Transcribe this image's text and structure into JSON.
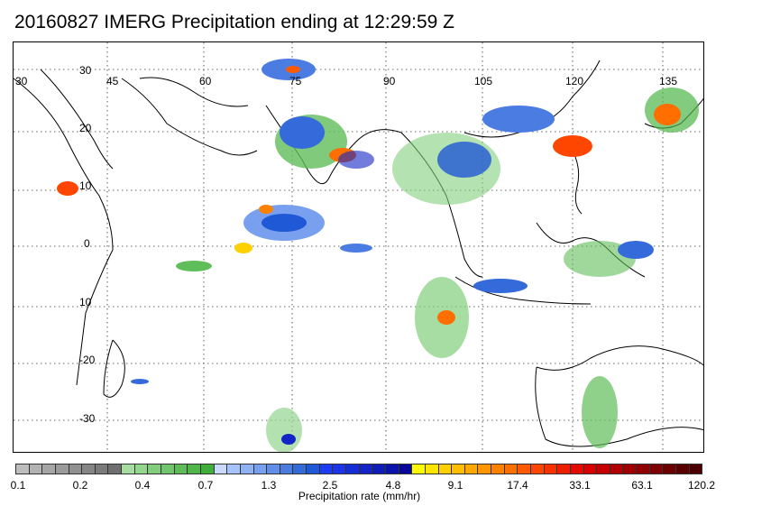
{
  "title": "20160827 IMERG Precipitation ending at 12:29:59 Z",
  "map": {
    "lon_labels": [
      "30",
      "45",
      "60",
      "75",
      "90",
      "105",
      "120",
      "135"
    ],
    "lat_labels": [
      "30",
      "20",
      "10",
      "0",
      "10",
      "-20",
      "-30"
    ]
  },
  "colorbar": {
    "colors": [
      "#bdbdbd",
      "#b2b2b2",
      "#a6a6a6",
      "#9b9b9b",
      "#909090",
      "#858585",
      "#7a7a7a",
      "#6f6f6f",
      "#a5dea0",
      "#93d68e",
      "#82ce7c",
      "#71c66b",
      "#60be5a",
      "#4fb649",
      "#3faf3a",
      "#c9d9ff",
      "#a6c4ff",
      "#8fb2f5",
      "#78a0ee",
      "#618ee8",
      "#4a7ce1",
      "#356adb",
      "#2059d6",
      "#1f3cf5",
      "#1a34e6",
      "#162cd6",
      "#1224c7",
      "#0e1cb8",
      "#0a14a8",
      "#06079a",
      "#fffb00",
      "#ffe400",
      "#ffd000",
      "#ffbd00",
      "#ffa900",
      "#ff9500",
      "#ff8100",
      "#ff6e00",
      "#ff5a00",
      "#ff4600",
      "#f73200",
      "#ee1e00",
      "#e50a00",
      "#d60000",
      "#c40000",
      "#b30000",
      "#a10000",
      "#900000",
      "#7e0000",
      "#6d0000",
      "#5b0000",
      "#4a0000"
    ],
    "tick_labels": [
      "0.1",
      "0.2",
      "0.4",
      "0.7",
      "1.3",
      "2.5",
      "4.8",
      "9.1",
      "17.4",
      "33.1",
      "63.1",
      "120.2"
    ],
    "label": "Precipitation rate (mm/hr)"
  }
}
